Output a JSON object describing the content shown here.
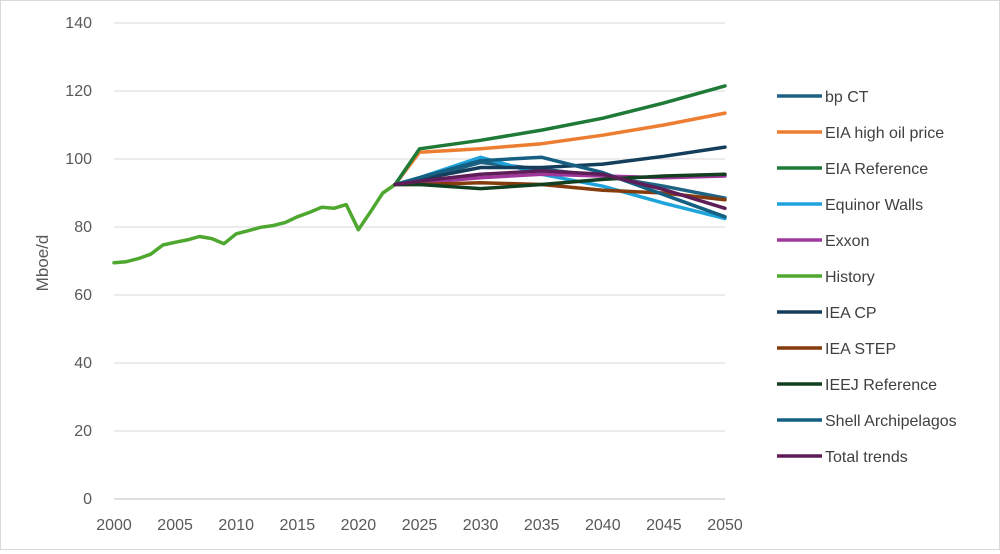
{
  "chart_data": {
    "type": "line",
    "title": "",
    "xlabel": "",
    "ylabel": "Mboe/d",
    "xlim": [
      2000,
      2050
    ],
    "ylim": [
      0,
      140
    ],
    "x_ticks": [
      2000,
      2005,
      2010,
      2015,
      2020,
      2025,
      2030,
      2035,
      2040,
      2045,
      2050
    ],
    "y_ticks": [
      0,
      20,
      40,
      60,
      80,
      100,
      120,
      140
    ],
    "grid": "horizontal",
    "legend_position": "right",
    "series": [
      {
        "name": "bp CT",
        "color": "#1f6384",
        "points": [
          [
            2023,
            92.5
          ],
          [
            2025,
            94
          ],
          [
            2030,
            99
          ],
          [
            2035,
            97
          ],
          [
            2040,
            95
          ],
          [
            2045,
            92
          ],
          [
            2050,
            88.5
          ]
        ]
      },
      {
        "name": "EIA high oil price",
        "color": "#ed7d31",
        "points": [
          [
            2023,
            92.5
          ],
          [
            2025,
            102
          ],
          [
            2030,
            103
          ],
          [
            2035,
            104.5
          ],
          [
            2040,
            107
          ],
          [
            2045,
            110
          ],
          [
            2050,
            113.5
          ]
        ]
      },
      {
        "name": "EIA Reference",
        "color": "#1e7a36",
        "points": [
          [
            2023,
            92.5
          ],
          [
            2025,
            103
          ],
          [
            2030,
            105.5
          ],
          [
            2035,
            108.5
          ],
          [
            2040,
            112
          ],
          [
            2045,
            116.5
          ],
          [
            2050,
            121.5
          ]
        ]
      },
      {
        "name": "Equinor Walls",
        "color": "#1fa3db",
        "points": [
          [
            2023,
            92.5
          ],
          [
            2025,
            94.5
          ],
          [
            2030,
            100.5
          ],
          [
            2035,
            95.5
          ],
          [
            2040,
            92
          ],
          [
            2045,
            87
          ],
          [
            2050,
            82.5
          ]
        ]
      },
      {
        "name": "Exxon",
        "color": "#a0389b",
        "points": [
          [
            2023,
            92.5
          ],
          [
            2025,
            93
          ],
          [
            2030,
            94.5
          ],
          [
            2035,
            95.5
          ],
          [
            2040,
            95
          ],
          [
            2045,
            94.5
          ],
          [
            2050,
            95
          ]
        ]
      },
      {
        "name": "History",
        "color": "#4ea72e",
        "points": [
          [
            2000,
            69.5
          ],
          [
            2001,
            69.8
          ],
          [
            2002,
            70.7
          ],
          [
            2003,
            72
          ],
          [
            2004,
            74.7
          ],
          [
            2005,
            75.5
          ],
          [
            2006,
            76.2
          ],
          [
            2007,
            77.2
          ],
          [
            2008,
            76.6
          ],
          [
            2009,
            75.1
          ],
          [
            2010,
            78
          ],
          [
            2011,
            78.9
          ],
          [
            2012,
            79.9
          ],
          [
            2013,
            80.4
          ],
          [
            2014,
            81.3
          ],
          [
            2015,
            83
          ],
          [
            2016,
            84.3
          ],
          [
            2017,
            85.8
          ],
          [
            2018,
            85.5
          ],
          [
            2019,
            86.6
          ],
          [
            2020,
            79.2
          ],
          [
            2021,
            84.5
          ],
          [
            2022,
            90
          ],
          [
            2023,
            92.5
          ]
        ]
      },
      {
        "name": "IEA CP",
        "color": "#153e5c",
        "points": [
          [
            2023,
            92.5
          ],
          [
            2025,
            94
          ],
          [
            2030,
            97.5
          ],
          [
            2035,
            97.5
          ],
          [
            2040,
            98.5
          ],
          [
            2045,
            100.8
          ],
          [
            2050,
            103.5
          ]
        ]
      },
      {
        "name": "IEA STEP",
        "color": "#843c0c",
        "points": [
          [
            2023,
            92.5
          ],
          [
            2025,
            92.5
          ],
          [
            2030,
            93
          ],
          [
            2035,
            92.5
          ],
          [
            2040,
            90.8
          ],
          [
            2045,
            90
          ],
          [
            2050,
            88
          ]
        ]
      },
      {
        "name": "IEEJ Reference",
        "color": "#133f21",
        "points": [
          [
            2023,
            92.5
          ],
          [
            2025,
            92.5
          ],
          [
            2030,
            91.3
          ],
          [
            2035,
            92.5
          ],
          [
            2040,
            94
          ],
          [
            2045,
            95
          ],
          [
            2050,
            95.5
          ]
        ]
      },
      {
        "name": "Shell Archipelagos",
        "color": "#156082",
        "points": [
          [
            2023,
            92.5
          ],
          [
            2025,
            94.5
          ],
          [
            2030,
            99.5
          ],
          [
            2035,
            100.5
          ],
          [
            2040,
            96
          ],
          [
            2045,
            89.5
          ],
          [
            2050,
            83
          ]
        ]
      },
      {
        "name": "Total trends",
        "color": "#5e1d57",
        "points": [
          [
            2023,
            92.5
          ],
          [
            2025,
            93.5
          ],
          [
            2030,
            95.5
          ],
          [
            2035,
            96.5
          ],
          [
            2040,
            95.5
          ],
          [
            2045,
            91
          ],
          [
            2050,
            85.5
          ]
        ]
      }
    ]
  }
}
